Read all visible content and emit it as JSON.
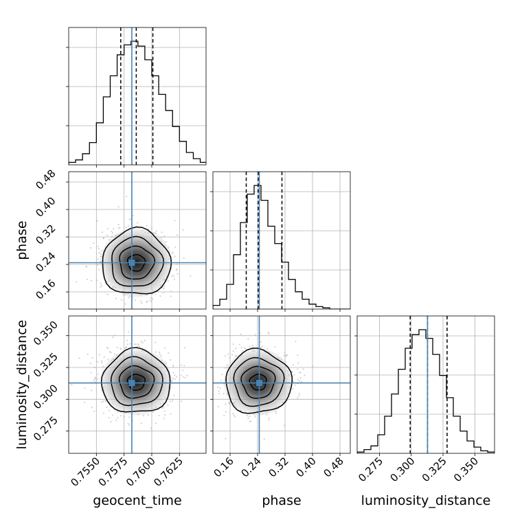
{
  "figure": {
    "parameters": [
      "geocent_time",
      "phase",
      "luminosity_distance"
    ]
  },
  "colors": {
    "truth": "#4682b4",
    "contour": "#000000",
    "grid": "#b0b0b0",
    "scatter": "#b4b4b4"
  },
  "chart_data": {
    "type": "corner",
    "parameters": [
      {
        "name": "geocent_time",
        "label": "geocent_time",
        "range": [
          0.7525,
          0.7649
        ],
        "ticks": [
          0.755,
          0.7575,
          0.76,
          0.7625
        ],
        "tick_labels": [
          "0.7550",
          "0.7575",
          "0.7600",
          "0.7625"
        ],
        "truth": 0.7582,
        "quantiles": [
          0.7572,
          0.7586,
          0.7601
        ],
        "hist_bin_edges_start": 0.7525,
        "hist_bin_width": 0.000625,
        "hist_counts": [
          2,
          4,
          9,
          18,
          34,
          55,
          72,
          89,
          97,
          100,
          96,
          85,
          72,
          57,
          44,
          31,
          19,
          10,
          5,
          2
        ]
      },
      {
        "name": "phase",
        "label": "phase",
        "range": [
          0.11,
          0.51
        ],
        "ticks": [
          0.16,
          0.24,
          0.32,
          0.4,
          0.48
        ],
        "tick_labels": [
          "0.16",
          "0.24",
          "0.32",
          "0.40",
          "0.48"
        ],
        "truth": 0.245,
        "quantiles": [
          0.207,
          0.242,
          0.311
        ],
        "hist_bin_edges_start": 0.11,
        "hist_bin_width": 0.02,
        "hist_counts": [
          3,
          8,
          20,
          44,
          70,
          93,
          100,
          88,
          67,
          53,
          38,
          24,
          14,
          8,
          4,
          2,
          1,
          0,
          0,
          0
        ]
      },
      {
        "name": "luminosity_distance",
        "label": "luminosity_distance",
        "range": [
          0.2575,
          0.3655
        ],
        "ticks": [
          0.275,
          0.3,
          0.325,
          0.35
        ],
        "tick_labels": [
          "0.275",
          "0.300",
          "0.325",
          "0.350"
        ],
        "truth": 0.3128,
        "quantiles": [
          0.2992,
          0.3128,
          0.3282
        ],
        "hist_bin_edges_start": 0.2575,
        "hist_bin_width": 0.0054,
        "hist_counts": [
          1,
          3,
          6,
          15,
          30,
          48,
          68,
          85,
          96,
          100,
          93,
          80,
          63,
          45,
          30,
          18,
          10,
          5,
          2,
          1
        ]
      }
    ],
    "pairs": [
      {
        "x": "geocent_time",
        "y": "phase",
        "center": [
          0.7586,
          0.245
        ],
        "sigma": [
          0.00155,
          0.048
        ],
        "contour_levels": [
          "0.5-sigma",
          "1-sigma",
          "1.5-sigma",
          "2-sigma"
        ]
      },
      {
        "x": "geocent_time",
        "y": "luminosity_distance",
        "center": [
          0.7586,
          0.3135
        ],
        "sigma": [
          0.00155,
          0.0125
        ],
        "contour_levels": [
          "0.5-sigma",
          "1-sigma",
          "1.5-sigma",
          "2-sigma"
        ]
      },
      {
        "x": "phase",
        "y": "luminosity_distance",
        "center": [
          0.242,
          0.3135
        ],
        "sigma": [
          0.048,
          0.0125
        ],
        "contour_levels": [
          "0.5-sigma",
          "1-sigma",
          "1.5-sigma",
          "2-sigma"
        ]
      }
    ],
    "grid": true
  }
}
